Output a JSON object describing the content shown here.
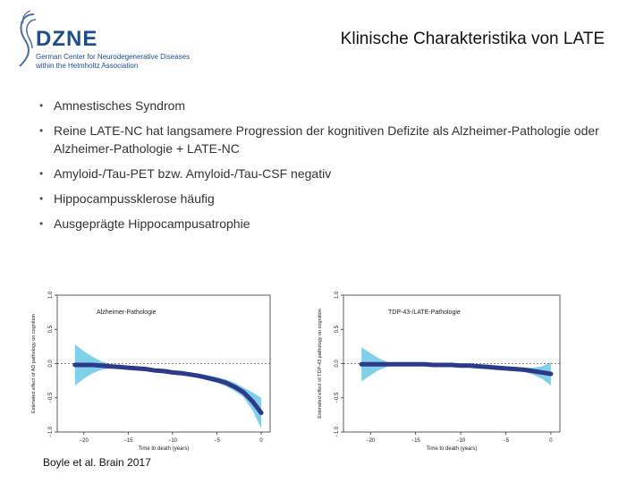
{
  "logo": {
    "title": "DZNE",
    "line1": "German Center for Neurodegenerative Diseases",
    "line2": "within the Helmholtz Association"
  },
  "slide": {
    "title": "Klinische Charakteristika von LATE",
    "bullets": [
      "Amnestisches Syndrom",
      "Reine LATE-NC hat langsamere Progression der kognitiven Defizite als Alzheimer-Pathologie oder Alzheimer-Pathologie + LATE-NC",
      "Amyloid-/Tau-PET bzw. Amyloid-/Tau-CSF negativ",
      "Hippocampussklerose häufig",
      "Ausgeprägte Hippocampusatrophie"
    ],
    "citation": "Boyle et al. Brain 2017"
  },
  "colors": {
    "line": "#2d3a8c",
    "band": "#7fd0e8",
    "logo": "#1f4e8c"
  },
  "chart_data": [
    {
      "type": "line",
      "title": "Alzheimer-Pathologie",
      "xlabel": "Time to death (years)",
      "ylabel": "Estimated effect of AD pathology on cognition",
      "xlim": [
        -23,
        1
      ],
      "ylim": [
        -1.0,
        1.0
      ],
      "xticks": [
        -20,
        -15,
        -10,
        -5,
        0
      ],
      "yticks": [
        -1.0,
        -0.5,
        0.0,
        0.5,
        1.0
      ],
      "reference_line": 0,
      "x": [
        -21,
        -20,
        -19,
        -18,
        -17,
        -16,
        -15,
        -14,
        -13,
        -12,
        -11,
        -10,
        -9,
        -8,
        -7,
        -6,
        -5,
        -4,
        -3,
        -2,
        -1,
        0
      ],
      "y": [
        -0.02,
        -0.02,
        -0.02,
        -0.03,
        -0.04,
        -0.05,
        -0.06,
        -0.07,
        -0.08,
        -0.1,
        -0.11,
        -0.13,
        -0.14,
        -0.16,
        -0.18,
        -0.21,
        -0.24,
        -0.28,
        -0.34,
        -0.42,
        -0.55,
        -0.72
      ],
      "lower": [
        -0.32,
        -0.22,
        -0.14,
        -0.09,
        -0.07,
        -0.07,
        -0.08,
        -0.09,
        -0.1,
        -0.12,
        -0.13,
        -0.15,
        -0.16,
        -0.19,
        -0.21,
        -0.25,
        -0.28,
        -0.33,
        -0.4,
        -0.49,
        -0.68,
        -0.95
      ],
      "upper": [
        0.28,
        0.18,
        0.1,
        0.03,
        -0.01,
        -0.03,
        -0.04,
        -0.05,
        -0.06,
        -0.08,
        -0.09,
        -0.11,
        -0.12,
        -0.14,
        -0.15,
        -0.17,
        -0.2,
        -0.23,
        -0.28,
        -0.35,
        -0.42,
        -0.5
      ],
      "band_color": "#7fd0e8",
      "line_color": "#2d3a8c"
    },
    {
      "type": "line",
      "title": "TDP-43-/LATE-Pathologie",
      "xlabel": "Time to death (years)",
      "ylabel": "Estimated effect of TDP-43 pathology on cognition",
      "xlim": [
        -23,
        1
      ],
      "ylim": [
        -1.0,
        1.0
      ],
      "xticks": [
        -20,
        -15,
        -10,
        -5,
        0
      ],
      "yticks": [
        -1.0,
        -0.5,
        0.0,
        0.5,
        1.0
      ],
      "reference_line": 0,
      "x": [
        -21,
        -20,
        -19,
        -18,
        -17,
        -16,
        -15,
        -14,
        -13,
        -12,
        -11,
        -10,
        -9,
        -8,
        -7,
        -6,
        -5,
        -4,
        -3,
        -2,
        -1,
        0
      ],
      "y": [
        -0.01,
        -0.01,
        -0.01,
        -0.01,
        -0.01,
        -0.01,
        -0.01,
        -0.01,
        -0.02,
        -0.02,
        -0.02,
        -0.03,
        -0.03,
        -0.04,
        -0.05,
        -0.06,
        -0.07,
        -0.08,
        -0.09,
        -0.11,
        -0.13,
        -0.15
      ],
      "lower": [
        -0.26,
        -0.17,
        -0.09,
        -0.04,
        -0.02,
        -0.02,
        -0.02,
        -0.02,
        -0.03,
        -0.03,
        -0.03,
        -0.04,
        -0.04,
        -0.05,
        -0.06,
        -0.07,
        -0.08,
        -0.1,
        -0.12,
        -0.16,
        -0.22,
        -0.32
      ],
      "upper": [
        0.24,
        0.15,
        0.07,
        0.02,
        0.0,
        0.0,
        0.0,
        0.0,
        -0.01,
        -0.01,
        -0.01,
        -0.02,
        -0.02,
        -0.03,
        -0.04,
        -0.05,
        -0.06,
        -0.06,
        -0.06,
        -0.06,
        -0.04,
        0.02
      ],
      "band_color": "#7fd0e8",
      "line_color": "#2d3a8c"
    }
  ]
}
